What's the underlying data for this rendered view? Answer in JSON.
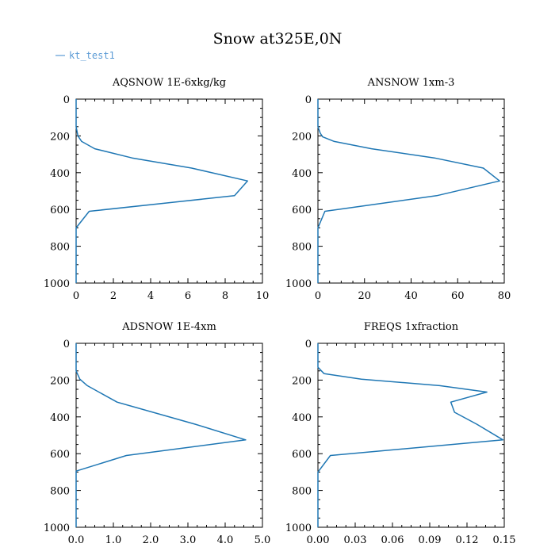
{
  "figure": {
    "title": "Snow at325E,0N",
    "legend": {
      "label": "kt_test1",
      "color": "#5b9bd5",
      "placement": "top-left"
    }
  },
  "chart_data": [
    {
      "type": "line",
      "title": "AQSNOW  1E-6xkg/kg",
      "xlim": [
        0,
        10
      ],
      "xticks": [
        "0",
        "2",
        "4",
        "6",
        "8",
        "10"
      ],
      "ylim": [
        0,
        1000
      ],
      "yticks": [
        "0",
        "200",
        "400",
        "600",
        "800",
        "1000"
      ],
      "y_inverted": true,
      "series": [
        {
          "color": "#1f77b4",
          "x": [
            0,
            0,
            0.1,
            0.3,
            1.0,
            3.0,
            6.2,
            9.2,
            8.5,
            0.7,
            0,
            0
          ],
          "y": [
            0,
            150,
            200,
            230,
            270,
            320,
            375,
            445,
            525,
            610,
            700,
            1000
          ]
        }
      ]
    },
    {
      "type": "line",
      "title": "ANSNOW  1xm-3",
      "xlim": [
        0,
        80
      ],
      "xticks": [
        "0",
        "20",
        "40",
        "60",
        "80"
      ],
      "ylim": [
        0,
        1000
      ],
      "yticks": [
        "0",
        "200",
        "400",
        "600",
        "800",
        "1000"
      ],
      "y_inverted": true,
      "series": [
        {
          "color": "#1f77b4",
          "x": [
            0,
            0,
            1,
            2,
            7,
            23,
            50,
            71,
            78,
            51,
            3,
            0,
            0
          ],
          "y": [
            0,
            150,
            185,
            205,
            230,
            270,
            320,
            375,
            445,
            525,
            610,
            700,
            1000
          ]
        }
      ]
    },
    {
      "type": "line",
      "title": "ADSNOW  1E-4xm",
      "xlim": [
        0,
        5
      ],
      "xticks": [
        "0.0",
        "1.0",
        "2.0",
        "3.0",
        "4.0",
        "5.0"
      ],
      "ylim": [
        0,
        1000
      ],
      "yticks": [
        "0",
        "200",
        "400",
        "600",
        "800",
        "1000"
      ],
      "y_inverted": true,
      "series": [
        {
          "color": "#1f77b4",
          "x": [
            0,
            0,
            0.1,
            0.3,
            1.1,
            3.2,
            4.55,
            1.35,
            0,
            0
          ],
          "y": [
            0,
            150,
            195,
            230,
            320,
            440,
            525,
            610,
            695,
            1000
          ]
        }
      ]
    },
    {
      "type": "line",
      "title": "FREQS  1xfraction",
      "xlim": [
        0,
        0.15
      ],
      "xticks": [
        "0.00",
        "0.03",
        "0.06",
        "0.09",
        "0.12",
        "0.15"
      ],
      "ylim": [
        0,
        1000
      ],
      "yticks": [
        "0",
        "200",
        "400",
        "600",
        "800",
        "1000"
      ],
      "y_inverted": true,
      "series": [
        {
          "color": "#1f77b4",
          "x": [
            0,
            0,
            0.005,
            0.035,
            0.098,
            0.136,
            0.107,
            0.11,
            0.128,
            0.149,
            0.01,
            0,
            0
          ],
          "y": [
            0,
            130,
            165,
            195,
            230,
            265,
            320,
            375,
            440,
            525,
            610,
            700,
            1000
          ]
        }
      ]
    }
  ]
}
